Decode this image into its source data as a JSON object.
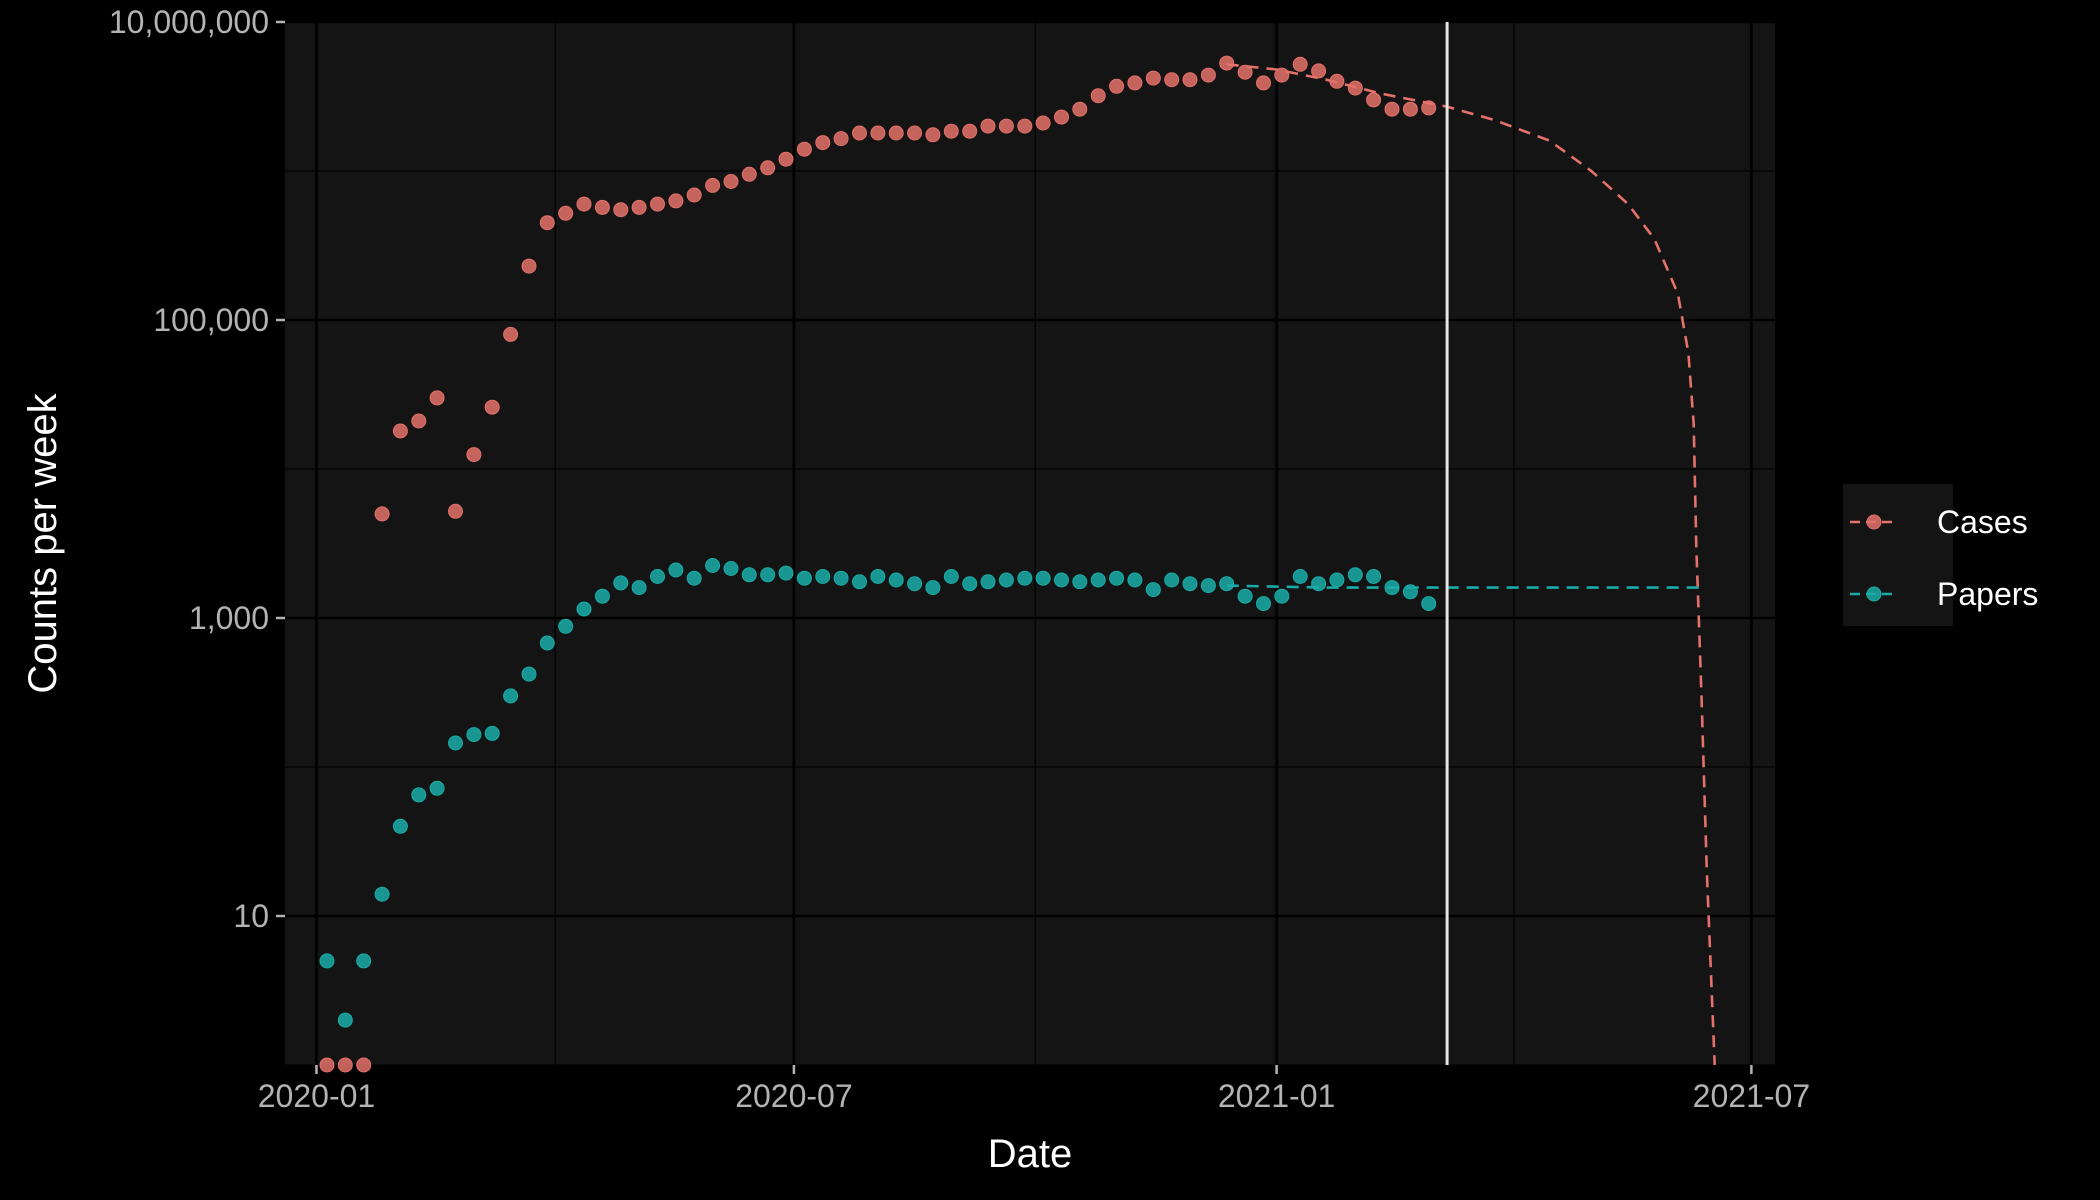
{
  "chart_data": {
    "type": "scatter",
    "xlabel": "Date",
    "ylabel": "Counts per week",
    "y_scale": "log10",
    "ylim": [
      1,
      10000000
    ],
    "xlim": [
      "2019-12-20",
      "2021-07-10"
    ],
    "x_ticks": [
      {
        "date": "2020-01-01",
        "label": "2020-01"
      },
      {
        "date": "2020-07-01",
        "label": "2020-07"
      },
      {
        "date": "2021-01-01",
        "label": "2021-01"
      },
      {
        "date": "2021-07-01",
        "label": "2021-07"
      }
    ],
    "y_ticks": [
      {
        "value": 10,
        "label": "10"
      },
      {
        "value": 1000,
        "label": "1,000"
      },
      {
        "value": 100000,
        "label": "100,000"
      },
      {
        "value": 10000000,
        "label": "10,000,000"
      }
    ],
    "y_minor_gridlines": [
      1,
      100,
      10000,
      1000000
    ],
    "grid": true,
    "legend_position": "right",
    "reference_line_date": "2021-03-07",
    "series": [
      {
        "name": "Cases",
        "color": "#E4716A",
        "start_date": "2020-01-05",
        "interval_days": 7,
        "values": [
          1,
          1,
          1,
          5000,
          18000,
          21000,
          30000,
          5200,
          12500,
          26000,
          80000,
          230000,
          450000,
          520000,
          600000,
          570000,
          550000,
          570000,
          600000,
          630000,
          690000,
          800000,
          850000,
          950000,
          1050000,
          1200000,
          1400000,
          1550000,
          1650000,
          1800000,
          1800000,
          1800000,
          1800000,
          1750000,
          1850000,
          1850000,
          2000000,
          2000000,
          2000000,
          2100000,
          2300000,
          2600000,
          3200000,
          3700000,
          3900000,
          4200000,
          4100000,
          4100000,
          4400000,
          5300000,
          4600000,
          3900000,
          4400000,
          5200000,
          4700000,
          4000000,
          3600000,
          3000000,
          2600000,
          2600000,
          2650000
        ],
        "forecast": {
          "dates": [
            "2020-12-13",
            "2021-01-01",
            "2021-01-20",
            "2021-02-10",
            "2021-03-07",
            "2021-03-25",
            "2021-04-15",
            "2021-05-01",
            "2021-05-15",
            "2021-05-25",
            "2021-06-03",
            "2021-06-07",
            "2021-06-09",
            "2021-06-10",
            "2021-06-12",
            "2021-06-14",
            "2021-06-17"
          ],
          "values": [
            5200000,
            4800000,
            4100000,
            3300000,
            2700000,
            2200000,
            1600000,
            1000000,
            600000,
            350000,
            150000,
            60000,
            20000,
            3000,
            300,
            20,
            1
          ]
        }
      },
      {
        "name": "Papers",
        "color": "#1AABA8",
        "start_date": "2020-01-05",
        "interval_days": 7,
        "values": [
          5,
          2,
          5,
          14,
          40,
          65,
          72,
          145,
          165,
          168,
          300,
          420,
          680,
          880,
          1150,
          1400,
          1720,
          1600,
          1900,
          2100,
          1850,
          2250,
          2150,
          1950,
          1950,
          2000,
          1850,
          1900,
          1850,
          1750,
          1900,
          1800,
          1700,
          1600,
          1900,
          1700,
          1750,
          1800,
          1850,
          1850,
          1800,
          1750,
          1800,
          1850,
          1800,
          1550,
          1800,
          1700,
          1650,
          1700,
          1400,
          1250,
          1400,
          1900,
          1700,
          1800,
          1950,
          1900,
          1600,
          1500,
          1250
        ],
        "forecast": {
          "dates": [
            "2020-12-13",
            "2021-01-20",
            "2021-03-07",
            "2021-06-12"
          ],
          "values": [
            1650,
            1600,
            1600,
            1600
          ]
        }
      }
    ]
  }
}
